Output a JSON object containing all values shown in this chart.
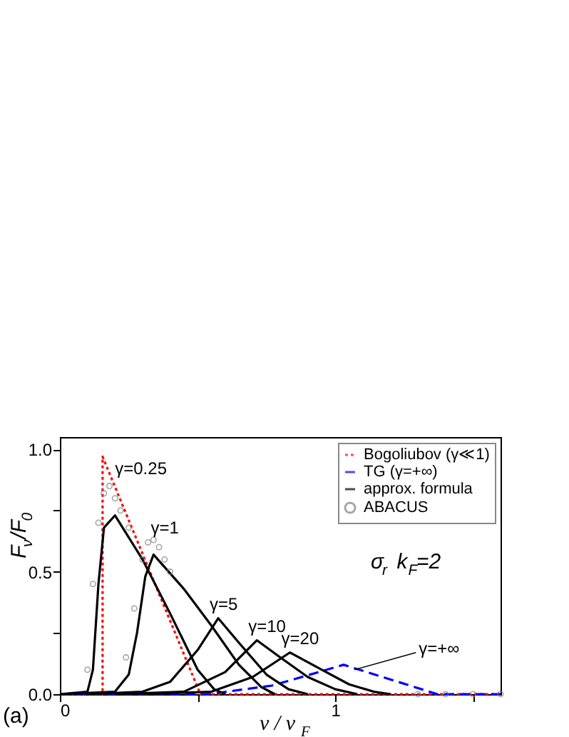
{
  "chart_data": {
    "type": "line",
    "xlabel": "ν / ν$_{F}$",
    "ylabel": "F$_{ν}$/F$_{0}$",
    "xlim": [
      0,
      1.6
    ],
    "ylim": [
      0,
      1.05
    ],
    "xticks": [
      0,
      {
        "value": 0.5,
        "label": null
      },
      1,
      {
        "value": 1.5,
        "label": null
      }
    ],
    "yticks": [
      {
        "value": 0,
        "label": "0.0"
      },
      {
        "value": 0.25,
        "label": null
      },
      {
        "value": 0.5,
        "label": "0.5"
      },
      {
        "value": 0.75,
        "label": null
      },
      {
        "value": 1,
        "label": "1.0"
      }
    ],
    "grid": false,
    "legend": "top right",
    "series": [
      {
        "name": "Bogoliubov (γ≪1)",
        "color": "#ff0000",
        "line_style": "dotted",
        "x": [
          0,
          0.155,
          0.155,
          0.51,
          1.6
        ],
        "values": [
          0,
          0,
          0.97,
          0,
          0
        ]
      },
      {
        "name": "TG (γ=+∞)",
        "color": "#0000ff",
        "line_style": "dashed",
        "x": [
          0,
          0.54,
          0.77,
          0.94,
          1.03,
          1.2,
          1.37,
          1.6
        ],
        "values": [
          0,
          0,
          0.035,
          0.09,
          0.12,
          0.06,
          0,
          0
        ]
      },
      {
        "name": "approx. formula",
        "color": "#000000",
        "line_style": "solid",
        "x": [
          0,
          0.1,
          0.12,
          0.14,
          0.16,
          0.2,
          0.3,
          0.4,
          0.5,
          0.56,
          0.6
        ],
        "values": [
          0,
          0.01,
          0.1,
          0.45,
          0.68,
          0.73,
          0.55,
          0.33,
          0.1,
          0.02,
          0
        ]
      },
      {
        "color": "#000000",
        "line_style": "solid",
        "x": [
          0,
          0.2,
          0.25,
          0.28,
          0.31,
          0.34,
          0.45,
          0.55,
          0.65,
          0.73,
          0.78
        ],
        "values": [
          0,
          0.01,
          0.08,
          0.25,
          0.48,
          0.57,
          0.43,
          0.28,
          0.12,
          0.03,
          0
        ]
      },
      {
        "color": "#000000",
        "line_style": "solid",
        "x": [
          0.1,
          0.3,
          0.4,
          0.5,
          0.575,
          0.65,
          0.75,
          0.83,
          0.9
        ],
        "values": [
          0,
          0.01,
          0.05,
          0.18,
          0.31,
          0.21,
          0.08,
          0.02,
          0
        ]
      },
      {
        "color": "#000000",
        "line_style": "solid",
        "x": [
          0.2,
          0.45,
          0.6,
          0.715,
          0.8,
          0.9,
          1.0,
          1.08
        ],
        "values": [
          0,
          0.01,
          0.09,
          0.22,
          0.15,
          0.07,
          0.02,
          0
        ]
      },
      {
        "color": "#000000",
        "line_style": "solid",
        "x": [
          0.3,
          0.55,
          0.7,
          0.835,
          0.95,
          1.05,
          1.14,
          1.2
        ],
        "values": [
          0,
          0.01,
          0.07,
          0.17,
          0.1,
          0.04,
          0.01,
          0
        ]
      },
      {
        "name": "ABACUS",
        "type": "scatter",
        "marker": "circle",
        "color": "#808080",
        "x": [
          0.1,
          0.12,
          0.14,
          0.16,
          0.18,
          0.2,
          0.22,
          0.25,
          0.24,
          0.27,
          0.3,
          0.32,
          0.34,
          0.36,
          0.38,
          0.4,
          1.3,
          1.4,
          1.5,
          1.6
        ],
        "values": [
          0.1,
          0.45,
          0.7,
          0.82,
          0.85,
          0.8,
          0.75,
          0.68,
          0.15,
          0.35,
          0.55,
          0.62,
          0.63,
          0.6,
          0.55,
          0.5,
          0,
          0,
          0,
          0
        ]
      }
    ],
    "annotations": [
      {
        "text": "γ=0.25",
        "x": 0.2,
        "y": 0.88
      },
      {
        "text": "γ=1",
        "x": 0.33,
        "y": 0.64
      },
      {
        "text": "γ=5",
        "x": 0.575,
        "y": 0.31
      },
      {
        "text": "γ=10",
        "x": 0.715,
        "y": 0.22
      },
      {
        "text": "γ=20",
        "x": 0.835,
        "y": 0.17
      },
      {
        "text": "γ=+∞",
        "x": 1.07,
        "y": 0.1
      },
      "σ$_{r}$ k$_{F}$=2",
      "(a)"
    ]
  }
}
